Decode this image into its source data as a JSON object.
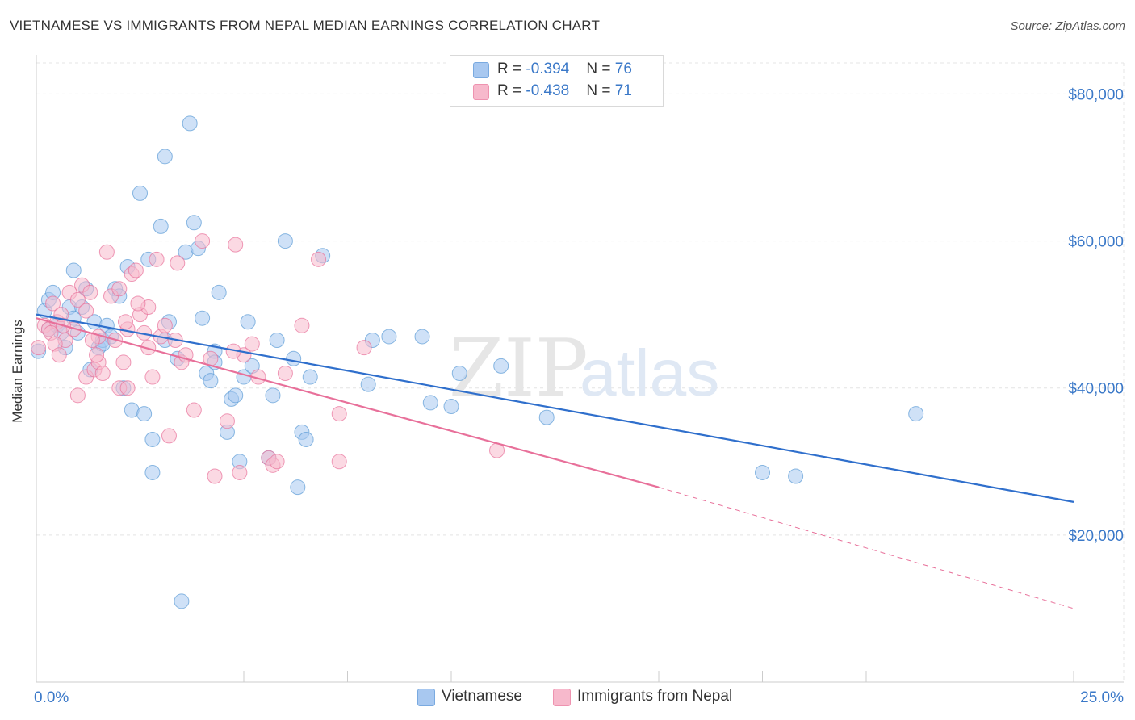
{
  "title": "VIETNAMESE VS IMMIGRANTS FROM NEPAL MEDIAN EARNINGS CORRELATION CHART",
  "source": "Source: ZipAtlas.com",
  "watermark": {
    "zip": "ZIP",
    "atlas": "atlas"
  },
  "legend_top": [
    {
      "r_label": "R = ",
      "r_value": "-0.394",
      "n_label": "N = ",
      "n_value": "76",
      "color": "#a8c8f0",
      "border": "#7aaae0"
    },
    {
      "r_label": "R = ",
      "r_value": "-0.438",
      "n_label": "N = ",
      "n_value": "71",
      "color": "#f7b9cc",
      "border": "#ee93b0"
    }
  ],
  "chart_data": {
    "type": "scatter",
    "xlabel": "",
    "ylabel": "Median Earnings",
    "xlim": [
      0,
      25
    ],
    "ylim": [
      0,
      84000
    ],
    "x_tick_labels": [
      "0.0%",
      "25.0%"
    ],
    "y_tick_labels": [
      "$20,000",
      "$40,000",
      "$60,000",
      "$80,000"
    ],
    "y_ticks": [
      20000,
      40000,
      60000,
      80000
    ],
    "grid": true,
    "legend_position": "bottom",
    "series": [
      {
        "name": "Vietnamese",
        "color": "#5b9bd5",
        "fill": "#a8c8f0",
        "trend": {
          "x": [
            0,
            25
          ],
          "y": [
            50000,
            24500
          ],
          "dashed_from": null
        },
        "points": [
          [
            0.05,
            45000
          ],
          [
            0.2,
            50500
          ],
          [
            0.3,
            48000
          ],
          [
            0.3,
            52000
          ],
          [
            0.4,
            53000
          ],
          [
            0.5,
            48500
          ],
          [
            0.6,
            47500
          ],
          [
            0.7,
            45500
          ],
          [
            0.8,
            51000
          ],
          [
            0.9,
            49500
          ],
          [
            0.9,
            56000
          ],
          [
            1.0,
            47500
          ],
          [
            1.1,
            51000
          ],
          [
            1.2,
            53500
          ],
          [
            1.3,
            42500
          ],
          [
            1.4,
            49000
          ],
          [
            1.5,
            45500
          ],
          [
            1.6,
            46500
          ],
          [
            1.7,
            48500
          ],
          [
            1.8,
            47000
          ],
          [
            1.9,
            53500
          ],
          [
            2.0,
            52500
          ],
          [
            2.1,
            40000
          ],
          [
            2.2,
            56500
          ],
          [
            2.3,
            37000
          ],
          [
            2.5,
            66500
          ],
          [
            2.6,
            36500
          ],
          [
            2.7,
            57500
          ],
          [
            2.8,
            28500
          ],
          [
            2.8,
            33000
          ],
          [
            3.0,
            62000
          ],
          [
            3.1,
            71500
          ],
          [
            3.1,
            46500
          ],
          [
            3.2,
            49000
          ],
          [
            3.4,
            44000
          ],
          [
            3.5,
            11000
          ],
          [
            3.6,
            58500
          ],
          [
            3.7,
            76000
          ],
          [
            3.8,
            62500
          ],
          [
            3.9,
            59000
          ],
          [
            4.0,
            49500
          ],
          [
            4.1,
            42000
          ],
          [
            4.2,
            41000
          ],
          [
            4.3,
            45000
          ],
          [
            4.3,
            43500
          ],
          [
            4.4,
            53000
          ],
          [
            4.6,
            34000
          ],
          [
            4.7,
            38500
          ],
          [
            4.8,
            39000
          ],
          [
            4.9,
            30000
          ],
          [
            5.0,
            41500
          ],
          [
            5.1,
            49000
          ],
          [
            5.2,
            43000
          ],
          [
            5.6,
            30500
          ],
          [
            5.7,
            39000
          ],
          [
            5.8,
            46500
          ],
          [
            6.0,
            60000
          ],
          [
            6.2,
            44000
          ],
          [
            6.3,
            26500
          ],
          [
            6.4,
            34000
          ],
          [
            6.5,
            33000
          ],
          [
            6.6,
            41500
          ],
          [
            6.9,
            58000
          ],
          [
            8.0,
            40500
          ],
          [
            8.1,
            46500
          ],
          [
            8.5,
            47000
          ],
          [
            9.3,
            47000
          ],
          [
            9.5,
            38000
          ],
          [
            10.0,
            37500
          ],
          [
            10.2,
            42000
          ],
          [
            11.2,
            43000
          ],
          [
            12.3,
            36000
          ],
          [
            17.5,
            28500
          ],
          [
            18.3,
            28000
          ],
          [
            21.2,
            36500
          ],
          [
            1.6,
            46000
          ]
        ]
      },
      {
        "name": "Immigrants from Nepal",
        "color": "#e8709a",
        "fill": "#f7b9cc",
        "trend": {
          "x": [
            0,
            15,
            25
          ],
          "y": [
            49500,
            26500,
            10000
          ],
          "dashed_from": 15
        },
        "points": [
          [
            0.05,
            45500
          ],
          [
            0.2,
            48500
          ],
          [
            0.3,
            48000
          ],
          [
            0.4,
            51500
          ],
          [
            0.5,
            49000
          ],
          [
            0.6,
            50000
          ],
          [
            0.7,
            46500
          ],
          [
            0.8,
            53000
          ],
          [
            0.9,
            48000
          ],
          [
            1.0,
            39000
          ],
          [
            1.0,
            52000
          ],
          [
            1.1,
            54000
          ],
          [
            1.2,
            50500
          ],
          [
            1.2,
            41500
          ],
          [
            1.3,
            53000
          ],
          [
            1.4,
            42500
          ],
          [
            1.5,
            43500
          ],
          [
            1.5,
            47000
          ],
          [
            1.6,
            42000
          ],
          [
            1.7,
            58500
          ],
          [
            1.8,
            52500
          ],
          [
            1.9,
            46500
          ],
          [
            2.0,
            40000
          ],
          [
            2.0,
            53500
          ],
          [
            2.1,
            43500
          ],
          [
            2.2,
            40000
          ],
          [
            2.2,
            48000
          ],
          [
            2.3,
            55500
          ],
          [
            2.4,
            56000
          ],
          [
            2.5,
            50000
          ],
          [
            2.6,
            47500
          ],
          [
            2.7,
            45500
          ],
          [
            2.7,
            51000
          ],
          [
            2.8,
            41500
          ],
          [
            2.9,
            57500
          ],
          [
            3.0,
            47000
          ],
          [
            3.1,
            48500
          ],
          [
            3.2,
            33500
          ],
          [
            3.4,
            57000
          ],
          [
            3.5,
            43500
          ],
          [
            3.6,
            44500
          ],
          [
            3.8,
            37000
          ],
          [
            4.0,
            60000
          ],
          [
            4.2,
            44000
          ],
          [
            4.3,
            28000
          ],
          [
            4.6,
            35500
          ],
          [
            4.8,
            59500
          ],
          [
            4.9,
            28500
          ],
          [
            5.0,
            44500
          ],
          [
            5.2,
            46000
          ],
          [
            5.6,
            30500
          ],
          [
            5.7,
            29500
          ],
          [
            5.8,
            30000
          ],
          [
            6.0,
            42000
          ],
          [
            6.4,
            48500
          ],
          [
            6.8,
            57500
          ],
          [
            7.3,
            36500
          ],
          [
            7.3,
            30000
          ],
          [
            7.9,
            45500
          ],
          [
            11.1,
            31500
          ],
          [
            0.35,
            47500
          ],
          [
            0.45,
            46000
          ],
          [
            0.55,
            44500
          ],
          [
            0.65,
            48500
          ],
          [
            1.35,
            46500
          ],
          [
            1.45,
            44500
          ],
          [
            2.15,
            49000
          ],
          [
            2.45,
            51500
          ],
          [
            3.35,
            46500
          ],
          [
            4.75,
            45000
          ],
          [
            5.35,
            41500
          ]
        ]
      }
    ]
  }
}
